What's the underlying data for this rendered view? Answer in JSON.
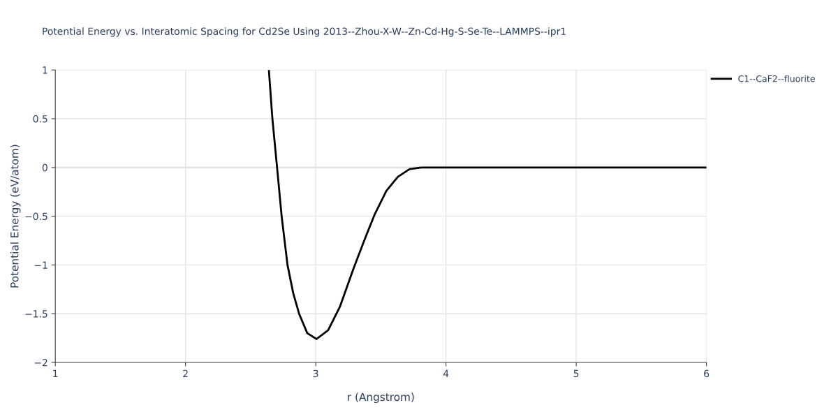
{
  "chart_data": {
    "type": "line",
    "title": "Potential Energy vs. Interatomic Spacing for Cd2Se Using 2013--Zhou-X-W--Zn-Cd-Hg-S-Se-Te--LAMMPS--ipr1",
    "xlabel": "r (Angstrom)",
    "ylabel": "Potential Energy (eV/atom)",
    "series": [
      {
        "name": "C1--CaF2--fluorite",
        "color": "#000000",
        "x": [
          2.64,
          2.667,
          2.703,
          2.738,
          2.783,
          2.827,
          2.872,
          2.935,
          3.006,
          3.095,
          3.185,
          3.292,
          3.381,
          3.453,
          3.542,
          3.631,
          3.721,
          3.81,
          4.0,
          5.0,
          6.0
        ],
        "values": [
          1.0,
          0.5,
          0.0,
          -0.5,
          -1.0,
          -1.29,
          -1.5,
          -1.7,
          -1.76,
          -1.67,
          -1.43,
          -1.03,
          -0.72,
          -0.48,
          -0.24,
          -0.095,
          -0.017,
          0.0,
          0.0,
          0.0,
          0.0
        ]
      }
    ],
    "xlim": [
      1,
      6
    ],
    "xticks": [
      1,
      2,
      3,
      4,
      5,
      6
    ],
    "ylim": [
      -2,
      1
    ],
    "yticks": [
      {
        "value": -2,
        "label": "−2"
      },
      {
        "value": -1.5,
        "label": "−1.5"
      },
      {
        "value": -1,
        "label": "−1"
      },
      {
        "value": -0.5,
        "label": "−0.5"
      },
      0,
      0.5,
      1
    ],
    "grid": true,
    "legend": "top right",
    "marker": "none",
    "line_style": "solid"
  }
}
